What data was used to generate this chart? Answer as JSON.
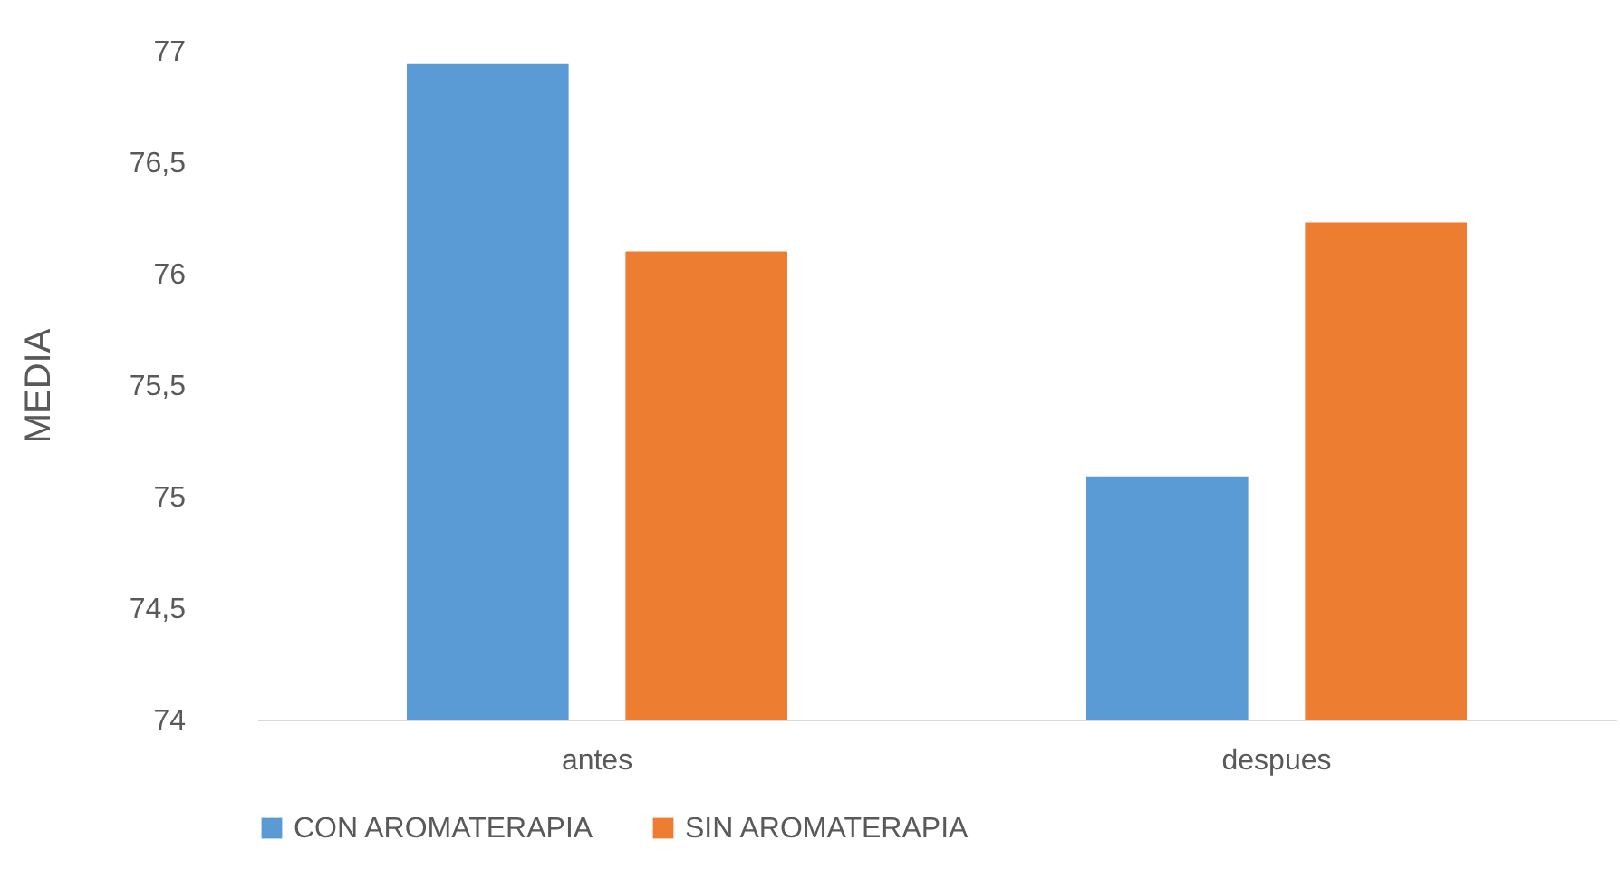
{
  "chart_data": {
    "type": "bar",
    "ylabel": "MEDIA",
    "categories": [
      "antes",
      "despues"
    ],
    "series": [
      {
        "name": "CON AROMATERAPIA",
        "color": "#5b9bd5",
        "values": [
          76.94,
          75.09
        ]
      },
      {
        "name": "SIN AROMATERAPIA",
        "color": "#ed7d31",
        "values": [
          76.1,
          76.23
        ]
      }
    ],
    "ylim": [
      74,
      77
    ],
    "yticks": [
      74,
      {
        "value": 74.5,
        "label": "74,5"
      },
      75,
      {
        "value": 75.5,
        "label": "75,5"
      },
      76,
      {
        "value": 76.5,
        "label": "76,5"
      },
      77
    ],
    "grid": false,
    "legend": "bottom"
  }
}
